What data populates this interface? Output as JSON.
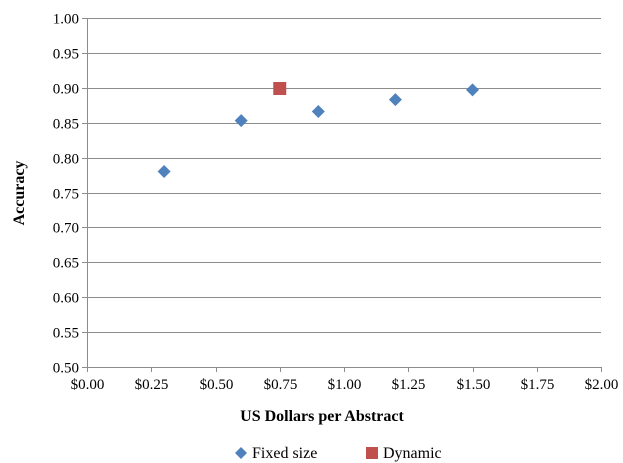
{
  "chart_data": {
    "type": "scatter",
    "title": "",
    "xlabel": "US Dollars per Abstract",
    "ylabel": "Accuracy",
    "xlim": [
      0,
      2
    ],
    "ylim": [
      0.5,
      1.0
    ],
    "x_tick_values": [
      0,
      0.25,
      0.5,
      0.75,
      1.0,
      1.25,
      1.5,
      1.75,
      2.0
    ],
    "x_tick_labels": [
      "$0.00",
      "$0.25",
      "$0.50",
      "$0.75",
      "$1.00",
      "$1.25",
      "$1.50",
      "$1.75",
      "$2.00"
    ],
    "y_tick_values": [
      0.5,
      0.55,
      0.6,
      0.65,
      0.7,
      0.75,
      0.8,
      0.85,
      0.9,
      0.95,
      1.0
    ],
    "y_tick_labels": [
      "0.50",
      "0.55",
      "0.60",
      "0.65",
      "0.70",
      "0.75",
      "0.80",
      "0.85",
      "0.90",
      "0.95",
      "1.00"
    ],
    "grid": "horizontal",
    "legend_position": "bottom",
    "series": [
      {
        "name": "Fixed size",
        "marker": "diamond",
        "color": "#4f81bd",
        "points": [
          {
            "x": 0.3,
            "y": 0.78
          },
          {
            "x": 0.6,
            "y": 0.853
          },
          {
            "x": 0.9,
            "y": 0.866
          },
          {
            "x": 1.2,
            "y": 0.883
          },
          {
            "x": 1.5,
            "y": 0.897
          }
        ]
      },
      {
        "name": "Dynamic",
        "marker": "square",
        "color": "#c0504d",
        "points": [
          {
            "x": 0.75,
            "y": 0.899
          }
        ]
      }
    ]
  }
}
